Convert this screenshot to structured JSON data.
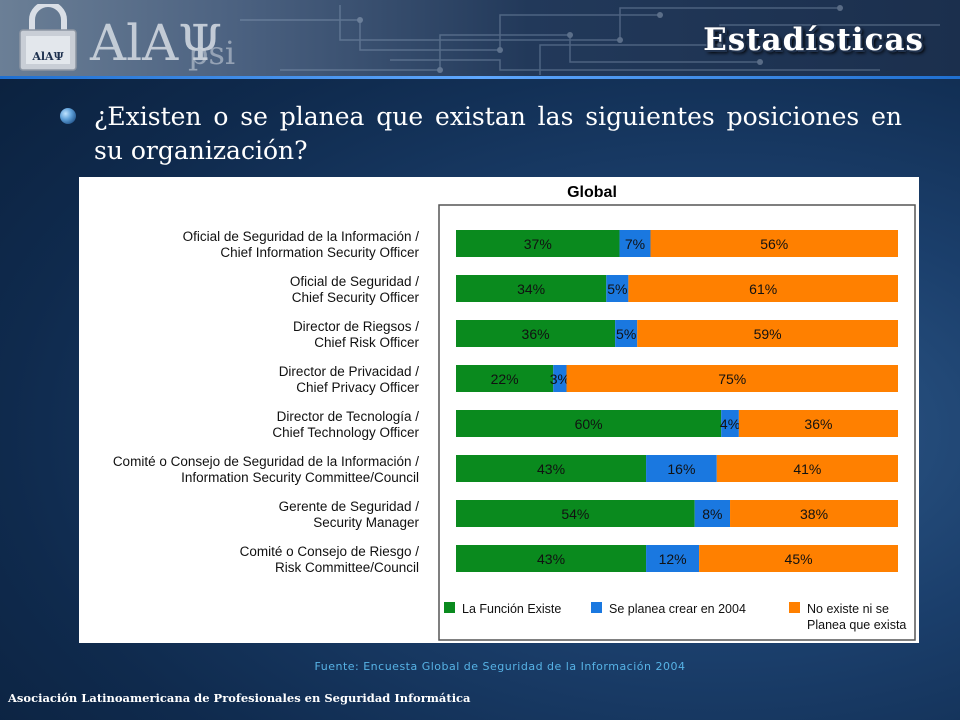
{
  "header": {
    "title": "Estadísticas",
    "logo_text": "AlAΨ",
    "logo_sub": "psi"
  },
  "question": "¿Existen o se planea que existan las siguientes posiciones en su organización?",
  "colors": {
    "existe": "#0a8a1e",
    "planea": "#1a78e0",
    "no_existe": "#ff8000"
  },
  "chart_data": {
    "type": "bar",
    "orientation": "horizontal-stacked-100",
    "title": "Global",
    "categories": [
      [
        "Oficial de Seguridad de la Información /",
        "Chief Information Security Officer"
      ],
      [
        "Oficial de Seguridad /",
        "Chief Security Officer"
      ],
      [
        "Director de Riegsos /",
        "Chief Risk Officer"
      ],
      [
        "Director de Privacidad /",
        "Chief Privacy Officer"
      ],
      [
        "Director de Tecnología /",
        "Chief Technology Officer"
      ],
      [
        "Comité o Consejo de Seguridad de la Información /",
        "Information Security Committee/Council"
      ],
      [
        "Gerente de Seguridad /",
        "Security Manager"
      ],
      [
        "Comité o Consejo de Riesgo /",
        "Risk Committee/Council"
      ]
    ],
    "series": [
      {
        "name": "La Función Existe",
        "color": "#0a8a1e",
        "values": [
          37,
          34,
          36,
          22,
          60,
          43,
          54,
          43
        ]
      },
      {
        "name": "Se planea crear en 2004",
        "color": "#1a78e0",
        "values": [
          7,
          5,
          5,
          3,
          4,
          16,
          8,
          12
        ]
      },
      {
        "name": "No existe ni se Planea que exista",
        "color": "#ff8000",
        "values": [
          56,
          61,
          59,
          75,
          36,
          41,
          38,
          45
        ]
      }
    ],
    "legend": [
      {
        "label": [
          "La Función Existe"
        ],
        "color": "#0a8a1e"
      },
      {
        "label": [
          "Se planea crear en 2004"
        ],
        "color": "#1a78e0"
      },
      {
        "label": [
          "No existe ni se",
          "Planea que exista"
        ],
        "color": "#ff8000"
      }
    ],
    "value_suffix": "%",
    "xlim": [
      0,
      100
    ],
    "legend_position": "bottom"
  },
  "source": "Fuente: Encuesta Global de Seguridad de la Información 2004",
  "footer": "Asociación Latinoamericana de Profesionales en Seguridad Informática"
}
